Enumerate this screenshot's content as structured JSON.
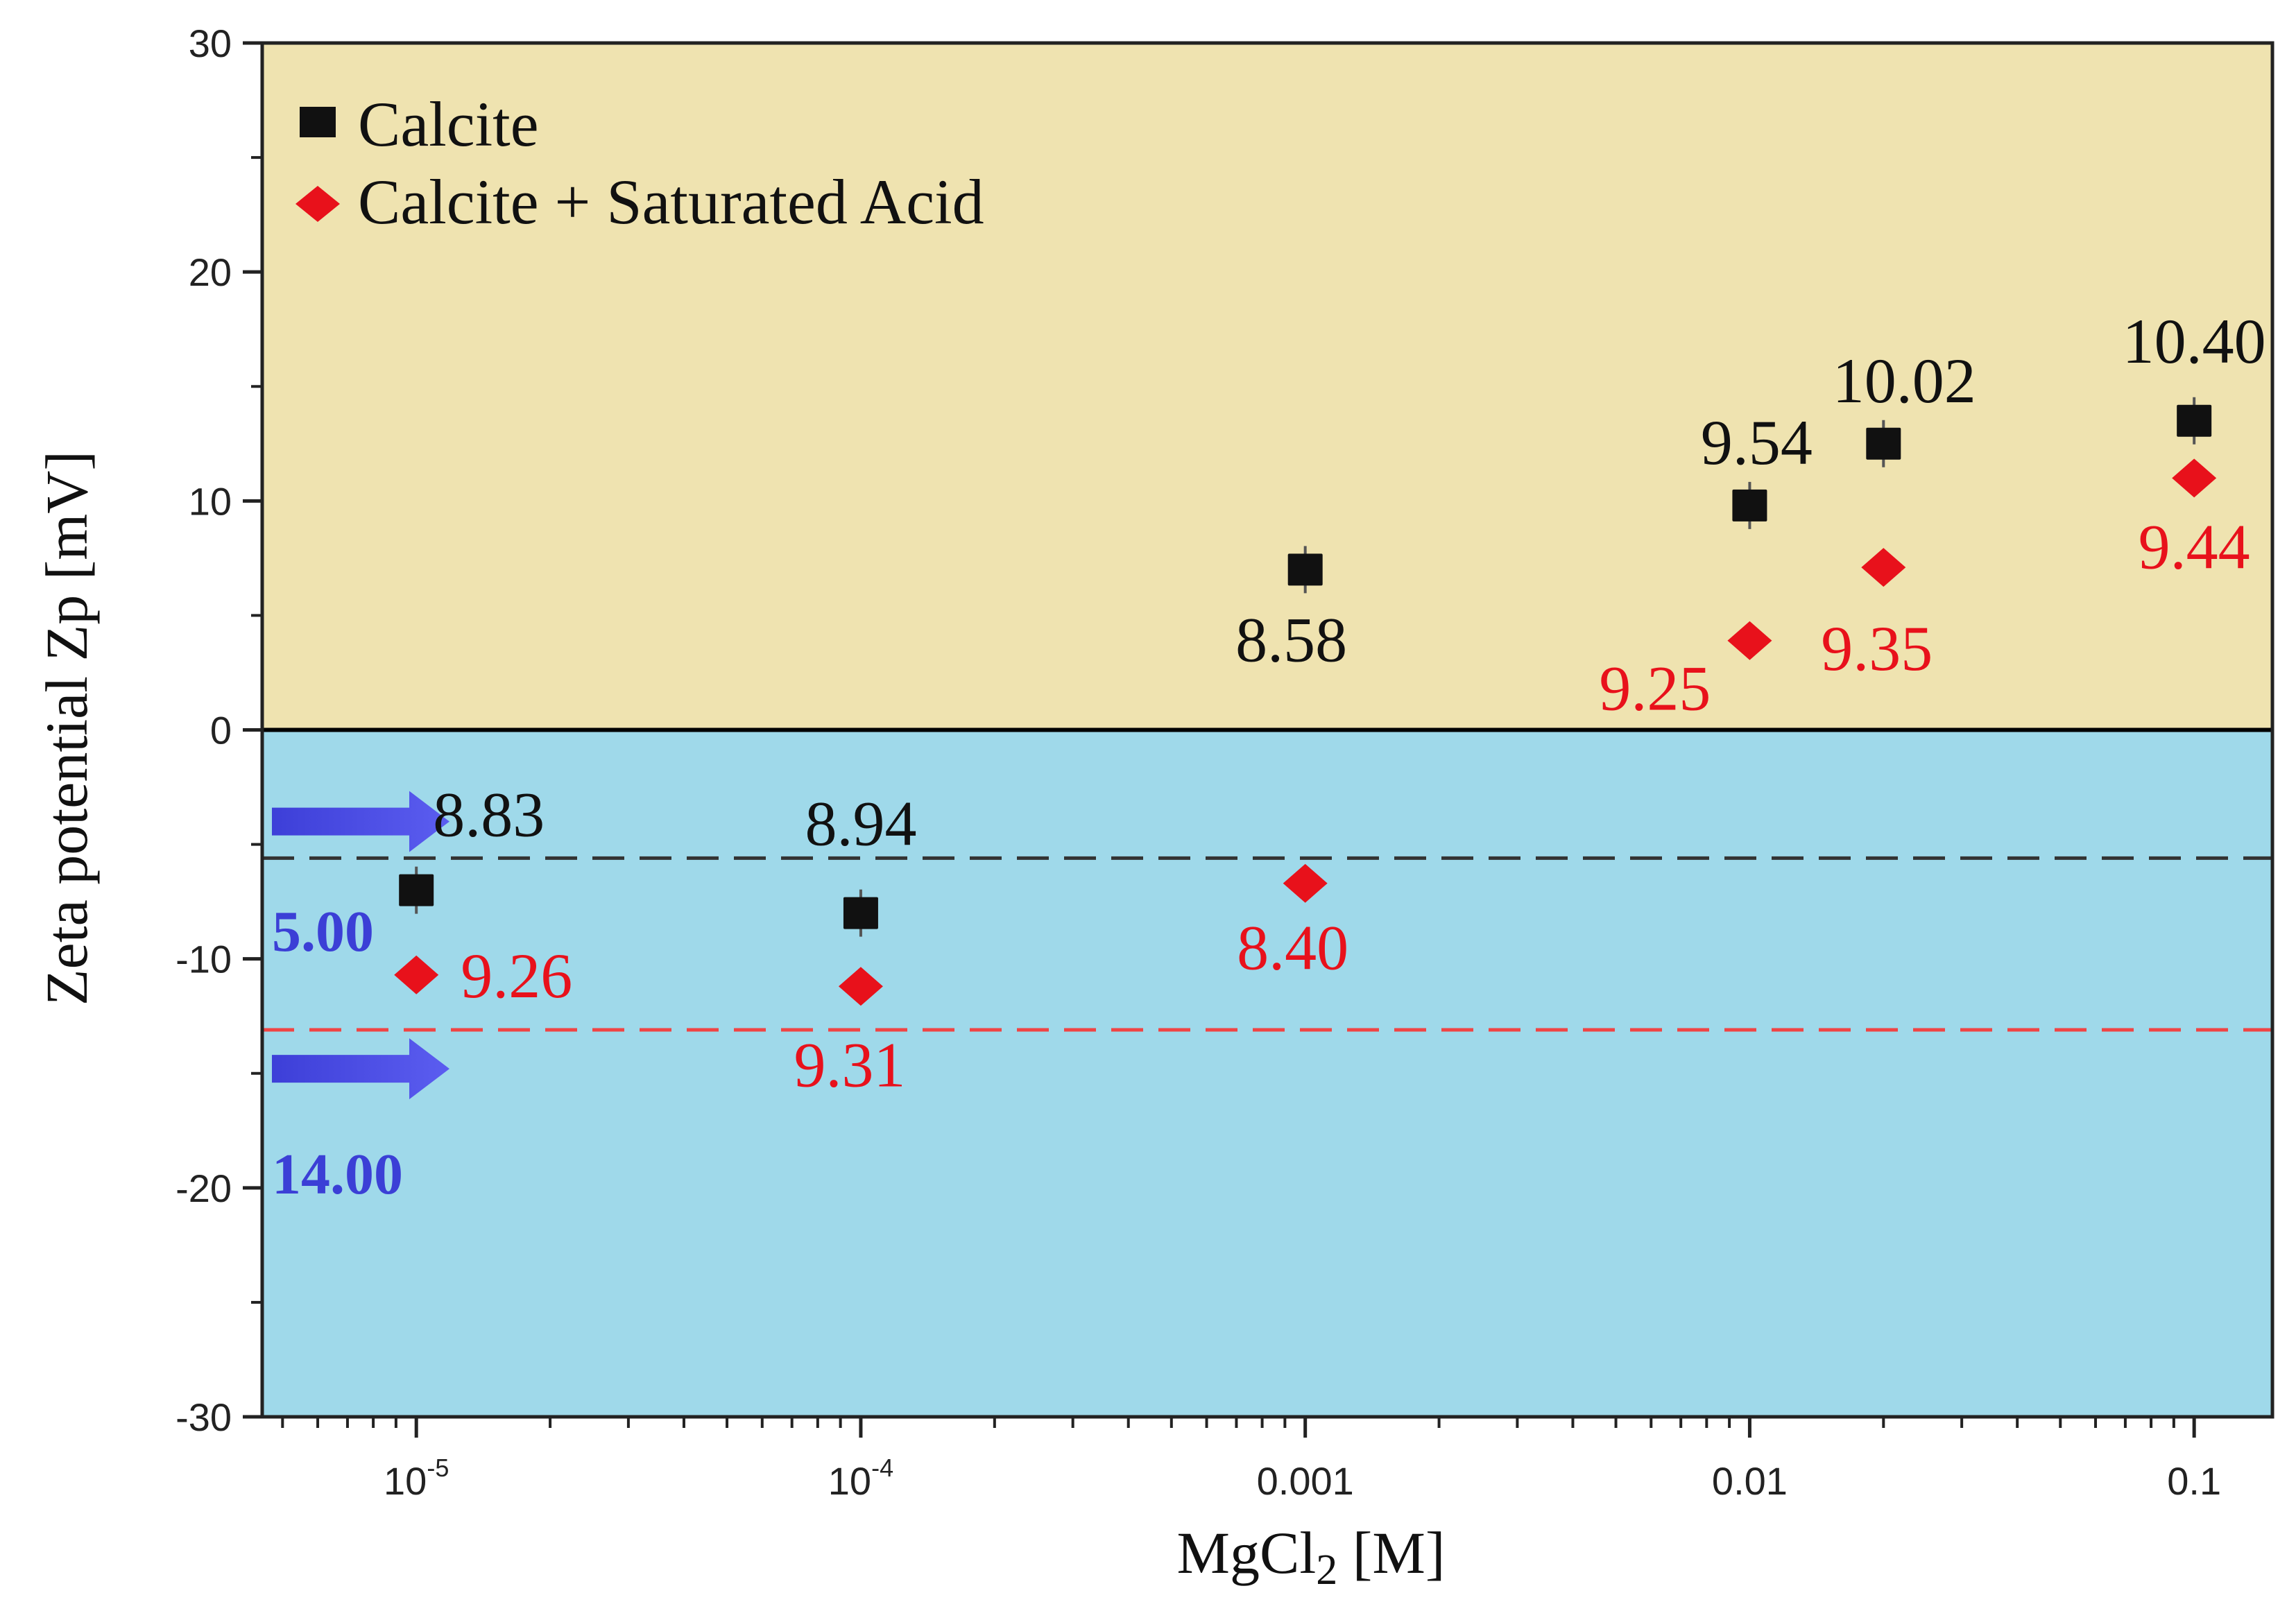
{
  "chart_data": {
    "type": "scatter",
    "title": "",
    "xlabel_main": "MgCl",
    "xlabel_sub": "2",
    "xlabel_unit": " [M]",
    "ylabel": "Zeta potential Zp [mV]",
    "xscale": "log",
    "xlim": [
      4.5e-06,
      0.15
    ],
    "ylim": [
      -30,
      30
    ],
    "yticks": [
      30,
      20,
      10,
      0,
      -10,
      -20,
      -30
    ],
    "xticks": [
      {
        "value": 1e-05,
        "base": "10",
        "exp": "-5"
      },
      {
        "value": 0.0001,
        "base": "10",
        "exp": "-4"
      },
      {
        "value": 0.001,
        "base": "0.001",
        "exp": ""
      },
      {
        "value": 0.01,
        "base": "0.01",
        "exp": ""
      },
      {
        "value": 0.1,
        "base": "0.1",
        "exp": ""
      }
    ],
    "regions": [
      {
        "name": "positive",
        "y_range": [
          0,
          30
        ],
        "color": "#efe3b0"
      },
      {
        "name": "negative",
        "y_range": [
          -30,
          0
        ],
        "color": "#9fd9ea"
      }
    ],
    "legend_position": "top-left",
    "series": [
      {
        "name": "Calcite",
        "marker": "square",
        "color": "#111111",
        "points": [
          {
            "x": 1e-05,
            "y": -7.0,
            "label": "8.83"
          },
          {
            "x": 0.0001,
            "y": -8.0,
            "label": "8.94"
          },
          {
            "x": 0.001,
            "y": 7.0,
            "label": "8.58"
          },
          {
            "x": 0.01,
            "y": 9.8,
            "label": "9.54"
          },
          {
            "x": 0.02,
            "y": 12.5,
            "label": "10.02"
          },
          {
            "x": 0.1,
            "y": 13.5,
            "label": "10.40"
          }
        ]
      },
      {
        "name": "Calcite + Saturated Acid",
        "marker": "diamond",
        "color": "#e8111b",
        "points": [
          {
            "x": 1e-05,
            "y": -10.7,
            "label": "9.26"
          },
          {
            "x": 0.0001,
            "y": -11.2,
            "label": "9.31"
          },
          {
            "x": 0.001,
            "y": -6.7,
            "label": "8.40"
          },
          {
            "x": 0.01,
            "y": 3.9,
            "label": "9.25"
          },
          {
            "x": 0.02,
            "y": 7.1,
            "label": "9.35"
          },
          {
            "x": 0.1,
            "y": 11.0,
            "label": "9.44"
          }
        ]
      }
    ],
    "reference_lines": [
      {
        "y": -5.6,
        "color": "#333333",
        "style": "dashed",
        "label": "5.00",
        "label_color": "#3b3fd6"
      },
      {
        "y": -13.1,
        "color": "#f04444",
        "style": "dashed",
        "label": "14.00",
        "label_color": "#3b3fd6"
      }
    ]
  }
}
